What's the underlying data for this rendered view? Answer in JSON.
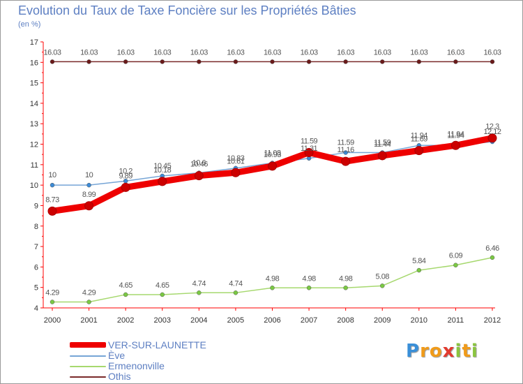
{
  "title": "Evolution du Taux de Taxe Foncière sur les Propriétés Bâties",
  "subtitle": "(en %)",
  "logo": {
    "letters": [
      "P",
      "r",
      "o",
      "x",
      "i",
      "t",
      "i"
    ],
    "colors": [
      "#3a8fd8",
      "#f09b1a",
      "#f09b1a",
      "#e23a2f",
      "#8bc53f",
      "#f09b1a",
      "#8bc53f"
    ]
  },
  "chart_data": {
    "type": "line",
    "title": "Evolution du Taux de Taxe Foncière sur les Propriétés Bâties",
    "ylabel": "(en %)",
    "x": [
      "2000",
      "2001",
      "2002",
      "2003",
      "2004",
      "2005",
      "2006",
      "2007",
      "2008",
      "2009",
      "2010",
      "2011",
      "2012"
    ],
    "ylim": [
      4,
      17
    ],
    "yticks": [
      4,
      5,
      6,
      7,
      8,
      9,
      10,
      11,
      12,
      13,
      14,
      15,
      16,
      17
    ],
    "grid": false,
    "legend_position": "bottom-left",
    "series": [
      {
        "name": "VER-SUR-LAUNETTE",
        "color": "#ee0000",
        "marker": "#cc0000",
        "values": [
          8.73,
          8.99,
          9.89,
          10.18,
          10.46,
          10.61,
          10.93,
          11.59,
          11.16,
          11.44,
          11.69,
          11.94,
          12.3
        ]
      },
      {
        "name": "Ève",
        "color": "#76a5d6",
        "marker": "#3b8ad6",
        "values": [
          10,
          10,
          10.2,
          10.45,
          10.6,
          10.83,
          11.08,
          11.31,
          11.59,
          11.59,
          11.94,
          11.94,
          12.12
        ]
      },
      {
        "name": "Ermenonville",
        "color": "#a6d86e",
        "marker": "#7ac943",
        "values": [
          4.29,
          4.29,
          4.65,
          4.65,
          4.74,
          4.74,
          4.98,
          4.98,
          4.98,
          5.08,
          5.84,
          6.09,
          6.46
        ]
      },
      {
        "name": "Othis",
        "color": "#7a2a2a",
        "marker": "#6a1a1a",
        "values": [
          16.03,
          16.03,
          16.03,
          16.03,
          16.03,
          16.03,
          16.03,
          16.03,
          16.03,
          16.03,
          16.03,
          16.03,
          16.03
        ]
      }
    ],
    "data_labels": [
      [
        "8.73",
        "8.99",
        "9.89",
        "10.18",
        "10.46",
        "10.61",
        "10.93",
        "11.59",
        "11.16",
        "11.44",
        "11.69",
        "11.94",
        "12.3"
      ],
      [
        "10",
        "10",
        "10.2",
        "10.45",
        "10.6",
        "10.83",
        "11.08",
        "11.31",
        "11.59",
        "11.59",
        "11.94",
        "11.94",
        "12.12"
      ],
      [
        "4.29",
        "4.29",
        "4.65",
        "4.65",
        "4.74",
        "4.74",
        "4.98",
        "4.98",
        "4.98",
        "5.08",
        "5.84",
        "6.09",
        "6.46"
      ],
      [
        "16.03",
        "16.03",
        "16.03",
        "16.03",
        "16.03",
        "16.03",
        "16.03",
        "16.03",
        "16.03",
        "16.03",
        "16.03",
        "16.03",
        "16.03"
      ]
    ]
  }
}
